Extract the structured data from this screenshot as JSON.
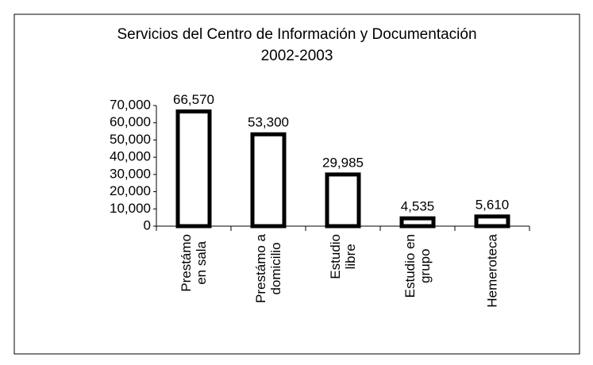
{
  "chart_data": {
    "type": "bar",
    "title": "Servicios del Centro de Información y Documentación\n2002-2003",
    "categories": [
      "Prestámo\nen sala",
      "Prestámo a\ndomicilio",
      "Estudio\nlibre",
      "Estudio en\ngrupo",
      "Hemeroteca"
    ],
    "values": [
      66570,
      53300,
      29985,
      4535,
      5610
    ],
    "value_labels": [
      "66,570",
      "53,300",
      "29,985",
      "4,535",
      "5,610"
    ],
    "color": "#ffffff",
    "ylim": [
      0,
      70000
    ],
    "yticks": [
      {
        "value": 0,
        "label": "0"
      },
      {
        "value": 10000,
        "label": "10,000"
      },
      {
        "value": 20000,
        "label": "20,000"
      },
      {
        "value": 30000,
        "label": "30,000"
      },
      {
        "value": 40000,
        "label": "40,000"
      },
      {
        "value": 50000,
        "label": "50,000"
      },
      {
        "value": 60000,
        "label": "60,000"
      },
      {
        "value": 70000,
        "label": "70,000"
      }
    ],
    "grid": false
  }
}
